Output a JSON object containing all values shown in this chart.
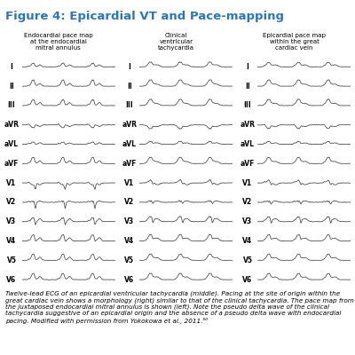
{
  "title": "Figure 4: Epicardial VT and Pace-mapping",
  "title_color": "#2E75B6",
  "title_fontsize": 9.5,
  "bg_color": "#FFFFFF",
  "panel_labels": [
    "Endocardial pace map\nat the endocardial\nmitral annulus",
    "Clinical\nventricular\ntachycardia",
    "Epicardial pace map\nwithin the great\ncardiac vein"
  ],
  "lead_labels": [
    "I",
    "II",
    "III",
    "aVR",
    "aVL",
    "aVF",
    "V1",
    "V2",
    "V3",
    "V4",
    "V5",
    "V6"
  ],
  "caption": "Twelve-lead ECG of an epicardial ventricular tachycardia (middle). Pacing at the site of origin within the great cardiac vein shows a morphology (right) similar to that of the clinical tachycardia. The pace map from the juxtaposed endocardial mitral annulus is shown (left). Note the pseudo delta wave of the clinical tachycardia suggestive of an epicardial origin and the absence of a pseudo delta wave with endocardial pacing. Modified with permission from Yokokowa et al., 2011.⁵⁰",
  "caption_fontsize": 5.2,
  "line_color": "#444444",
  "line_width": 0.55,
  "title_bg_color": "#C8DDF0",
  "separator_color": "#888888",
  "label_fontsize": 5.5,
  "header_fontsize": 5.0
}
